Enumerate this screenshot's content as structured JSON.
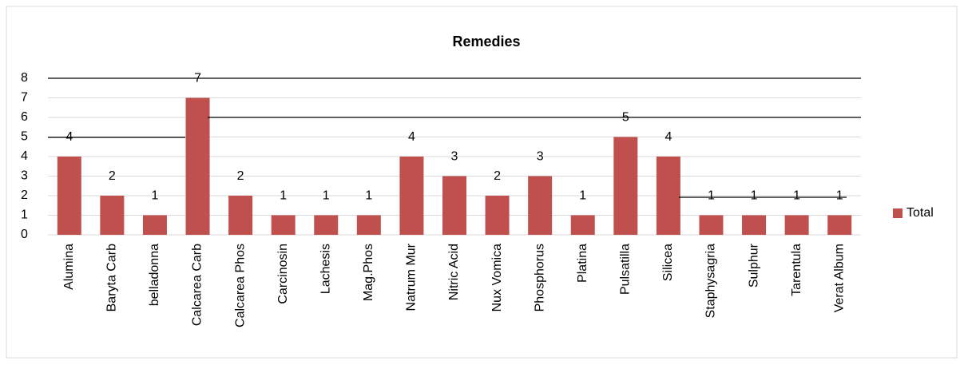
{
  "chart_data": {
    "type": "bar",
    "title": "Remedies",
    "categories": [
      "Alumina",
      "Baryta Carb",
      "belladonna",
      "Calcarea Carb",
      "Calcarea Phos",
      "Carcinosin",
      "Lachesis",
      "Mag.Phos",
      "Natrum Mur",
      "Nitric Acid",
      "Nux Vomica",
      "Phosphorus",
      "Platina",
      "Pulsatilla",
      "Silicea",
      "Staphysagria",
      "Sulphur",
      "Tarentula",
      "Verat Album"
    ],
    "series": [
      {
        "name": "Total",
        "color": "#c0504d",
        "values": [
          4,
          2,
          1,
          7,
          2,
          1,
          1,
          1,
          4,
          3,
          2,
          3,
          1,
          5,
          4,
          1,
          1,
          1,
          1
        ]
      }
    ],
    "ylim": [
      0,
      8
    ],
    "yticks": [
      0,
      1,
      2,
      3,
      4,
      5,
      6,
      7,
      8
    ],
    "grid": true,
    "legend": "right"
  }
}
